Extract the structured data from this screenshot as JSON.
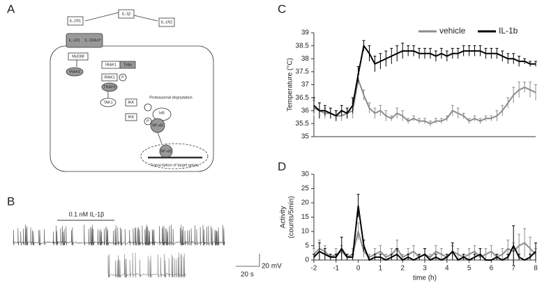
{
  "figure": {
    "panels": [
      "A",
      "B",
      "C",
      "D"
    ],
    "diagram": {
      "labels": [
        "IL-1β",
        "IL-1R1",
        "IL-1R2",
        "IL-1R1",
        "IL-1RAcP",
        "MyD88",
        "IRAK4",
        "IRAK1",
        "Tollip",
        "IRAK1",
        "P",
        "TRAF6",
        "TAK1",
        "IKK",
        "IKK",
        "Proteasomal degradation",
        "IκB",
        "P",
        "NF-κB",
        "NF-κB",
        "Transcription of target genes"
      ]
    },
    "trace": {
      "stimulus": "0.1 nM IL-1β",
      "scale_y": "20 mV",
      "scale_x": "20 s"
    }
  },
  "chart_data": [
    {
      "type": "line",
      "ylabel": "Temperature (°C)",
      "x": [
        -2,
        -1.75,
        -1.5,
        -1.25,
        -1,
        -0.75,
        -0.5,
        -0.25,
        0,
        0.25,
        0.5,
        0.75,
        1,
        1.25,
        1.5,
        1.75,
        2,
        2.25,
        2.5,
        2.75,
        3,
        3.25,
        3.5,
        3.75,
        4,
        4.25,
        4.5,
        4.75,
        5,
        5.25,
        5.5,
        5.75,
        6,
        6.25,
        6.5,
        6.75,
        7,
        7.25,
        7.5,
        7.75,
        8
      ],
      "xlim": [
        -2,
        8
      ],
      "ylim": [
        35,
        39
      ],
      "yticks": [
        35,
        35.5,
        36,
        36.5,
        37,
        37.5,
        38,
        38.5,
        39
      ],
      "legend": "top",
      "series": [
        {
          "name": "vehicle",
          "color": "#8c8c8c",
          "values": [
            36.1,
            36.0,
            35.9,
            35.9,
            35.8,
            35.8,
            35.9,
            36.0,
            37.2,
            36.6,
            36.1,
            35.9,
            36.0,
            35.8,
            35.7,
            35.9,
            35.8,
            35.6,
            35.7,
            35.6,
            35.6,
            35.5,
            35.6,
            35.6,
            35.7,
            36.0,
            35.9,
            35.8,
            35.6,
            35.7,
            35.6,
            35.7,
            35.7,
            35.8,
            36.0,
            36.3,
            36.6,
            36.8,
            36.9,
            36.8,
            36.7
          ],
          "errors": [
            0.3,
            0.3,
            0.2,
            0.2,
            0.2,
            0.2,
            0.2,
            0.3,
            0.2,
            0.2,
            0.2,
            0.2,
            0.2,
            0.2,
            0.1,
            0.2,
            0.2,
            0.1,
            0.1,
            0.1,
            0.1,
            0.1,
            0.1,
            0.1,
            0.1,
            0.2,
            0.2,
            0.1,
            0.1,
            0.1,
            0.1,
            0.1,
            0.1,
            0.2,
            0.2,
            0.2,
            0.3,
            0.3,
            0.2,
            0.3,
            0.3
          ]
        },
        {
          "name": "IL-1b",
          "color": "#000000",
          "values": [
            36.2,
            36.0,
            36.0,
            35.9,
            35.8,
            36.0,
            35.9,
            36.2,
            37.4,
            38.5,
            38.2,
            37.8,
            37.9,
            38.0,
            38.1,
            38.2,
            38.3,
            38.3,
            38.3,
            38.2,
            38.2,
            38.2,
            38.1,
            38.2,
            38.1,
            38.2,
            38.2,
            38.3,
            38.3,
            38.3,
            38.3,
            38.2,
            38.2,
            38.2,
            38.1,
            38.0,
            38.0,
            37.9,
            37.9,
            37.8,
            37.8
          ],
          "errors": [
            0.3,
            0.3,
            0.2,
            0.2,
            0.2,
            0.2,
            0.2,
            0.3,
            0.3,
            0.2,
            0.3,
            0.3,
            0.3,
            0.3,
            0.3,
            0.3,
            0.3,
            0.2,
            0.2,
            0.2,
            0.2,
            0.2,
            0.2,
            0.2,
            0.2,
            0.2,
            0.2,
            0.2,
            0.2,
            0.2,
            0.2,
            0.2,
            0.2,
            0.2,
            0.2,
            0.2,
            0.2,
            0.2,
            0.1,
            0.1,
            0.1
          ]
        }
      ]
    },
    {
      "type": "line",
      "xlabel": "time (h)",
      "ylabel": [
        "Activity",
        "(counts/5min)"
      ],
      "x": [
        -2,
        -1.75,
        -1.5,
        -1.25,
        -1,
        -0.75,
        -0.5,
        -0.25,
        0,
        0.25,
        0.5,
        0.75,
        1,
        1.25,
        1.5,
        1.75,
        2,
        2.25,
        2.5,
        2.75,
        3,
        3.25,
        3.5,
        3.75,
        4,
        4.25,
        4.5,
        4.75,
        5,
        5.25,
        5.5,
        5.75,
        6,
        6.25,
        6.5,
        6.75,
        7,
        7.25,
        7.5,
        7.75,
        8
      ],
      "xlim": [
        -2,
        8
      ],
      "xticks": [
        -2,
        -1,
        0,
        1,
        2,
        3,
        4,
        5,
        6,
        7,
        8
      ],
      "ylim": [
        0,
        30
      ],
      "yticks": [
        0,
        5,
        10,
        15,
        20,
        25,
        30
      ],
      "series": [
        {
          "name": "vehicle",
          "color": "#8c8c8c",
          "values": [
            2,
            4,
            3,
            1,
            2,
            3,
            1,
            2,
            10,
            3,
            1,
            2,
            3,
            1,
            2,
            4,
            1,
            2,
            3,
            1,
            2,
            1,
            3,
            2,
            1,
            3,
            2,
            1,
            2,
            3,
            1,
            2,
            3,
            1,
            2,
            4,
            3,
            5,
            6,
            4,
            2
          ],
          "errors": [
            2,
            3,
            2,
            1,
            2,
            2,
            1,
            2,
            3,
            2,
            1,
            2,
            2,
            1,
            2,
            3,
            1,
            2,
            2,
            1,
            2,
            1,
            2,
            2,
            1,
            2,
            2,
            1,
            2,
            2,
            1,
            2,
            2,
            1,
            2,
            3,
            3,
            4,
            5,
            4,
            2
          ]
        },
        {
          "name": "IL-1b",
          "color": "#000000",
          "values": [
            1,
            3,
            2,
            1,
            1,
            4,
            1,
            1,
            19,
            5,
            0,
            1,
            1,
            0,
            1,
            2,
            0,
            1,
            0,
            1,
            2,
            0,
            1,
            0,
            1,
            3,
            0,
            1,
            0,
            1,
            2,
            0,
            0,
            1,
            0,
            1,
            5,
            1,
            0,
            1,
            3
          ],
          "errors": [
            1,
            3,
            2,
            1,
            1,
            4,
            1,
            1,
            4,
            2,
            0,
            1,
            1,
            0,
            1,
            2,
            0,
            1,
            0,
            1,
            2,
            0,
            1,
            0,
            1,
            3,
            0,
            1,
            0,
            1,
            2,
            0,
            0,
            1,
            0,
            1,
            7,
            1,
            0,
            1,
            3
          ]
        }
      ]
    }
  ]
}
